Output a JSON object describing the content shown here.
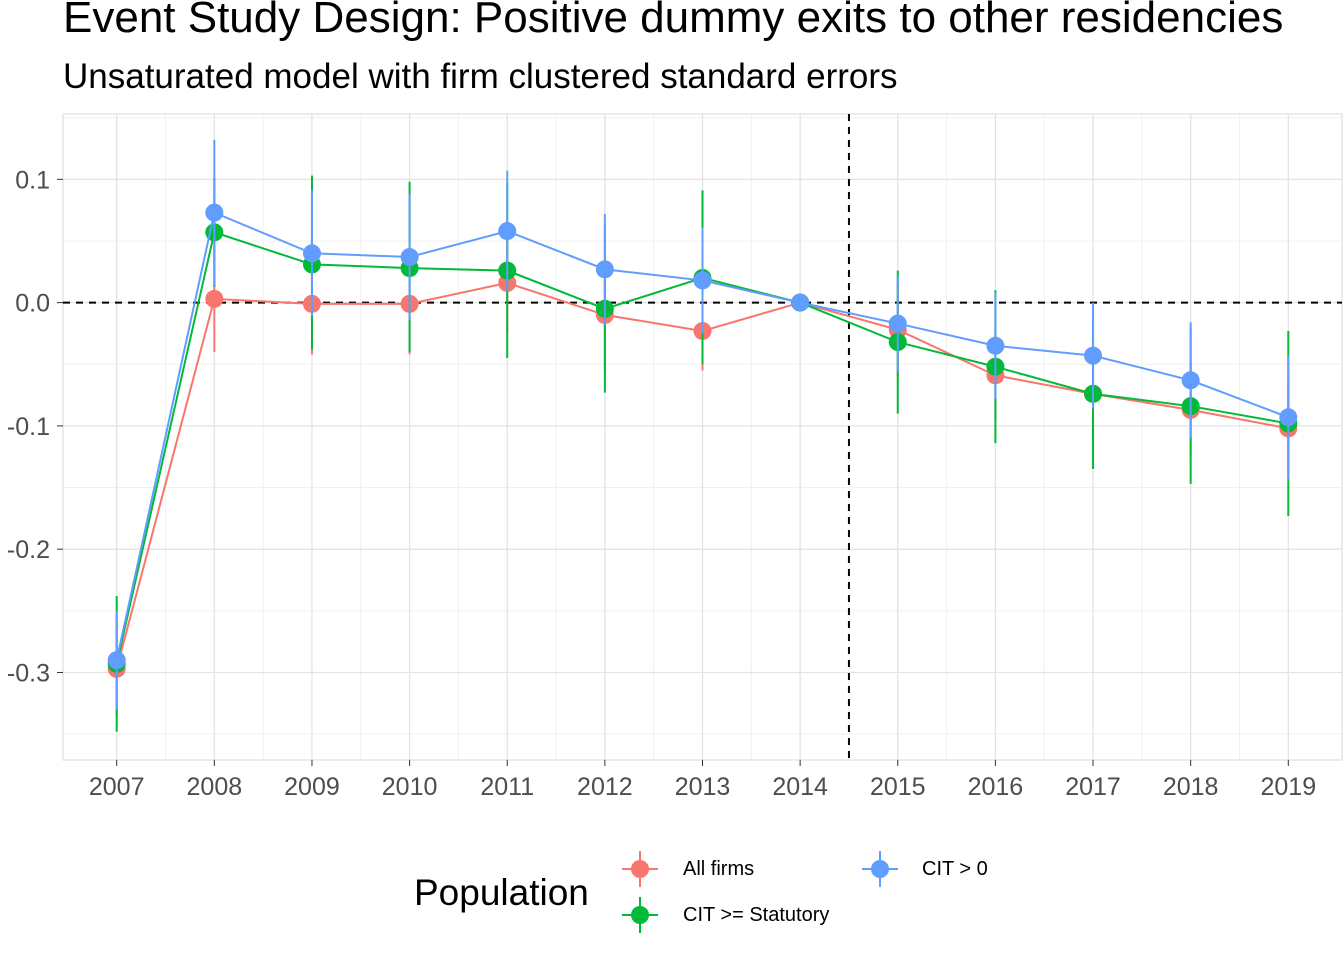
{
  "title": "Event Study Design: Positive dummy exits to other residencies",
  "subtitle": "Unsaturated model with firm clustered standard errors",
  "legend": {
    "title": "Population",
    "entries": [
      "All firms",
      "CIT >= Statutory",
      "CIT > 0"
    ]
  },
  "colors": {
    "All firms": "#F8766D",
    "CIT >= Statutory": "#00BA38",
    "CIT > 0": "#619CFF"
  },
  "chart_data": {
    "type": "line",
    "x": [
      2007,
      2008,
      2009,
      2010,
      2011,
      2012,
      2013,
      2014,
      2015,
      2016,
      2017,
      2018,
      2019
    ],
    "xtick_labels": [
      "2007",
      "2008",
      "2009",
      "2010",
      "2011",
      "2012",
      "2013",
      "2014",
      "2015",
      "2016",
      "2017",
      "2018",
      "2019"
    ],
    "ytick_values": [
      0.1,
      0.0,
      -0.1,
      -0.2,
      -0.3
    ],
    "ytick_labels": [
      "0.1",
      "0.0",
      "-0.1",
      "-0.2",
      "-0.3"
    ],
    "ylim": [
      -0.371,
      0.153
    ],
    "xlim": [
      2006.45,
      2019.55
    ],
    "reference_lines": {
      "y": 0,
      "x": 2014.5,
      "style": "dashed"
    },
    "grid": true,
    "legend_position": "bottom",
    "series": [
      {
        "name": "All firms",
        "color": "#F8766D",
        "values": [
          -0.297,
          0.003,
          -0.001,
          -0.001,
          0.016,
          -0.01,
          -0.023,
          0.0,
          -0.022,
          -0.059,
          -0.074,
          -0.087,
          -0.102
        ],
        "lower": [
          -0.335,
          -0.04,
          -0.042,
          -0.042,
          -0.025,
          -0.055,
          -0.055,
          0.0,
          -0.06,
          -0.095,
          -0.112,
          -0.125,
          -0.14
        ],
        "upper": [
          -0.259,
          0.046,
          0.04,
          0.04,
          0.057,
          0.035,
          0.009,
          0.0,
          0.016,
          -0.023,
          -0.036,
          -0.049,
          -0.064
        ]
      },
      {
        "name": "CIT >= Statutory",
        "color": "#00BA38",
        "values": [
          -0.293,
          0.057,
          0.031,
          0.028,
          0.026,
          -0.005,
          0.02,
          0.0,
          -0.032,
          -0.052,
          -0.074,
          -0.084,
          -0.098
        ],
        "lower": [
          -0.348,
          0.013,
          -0.038,
          -0.04,
          -0.045,
          -0.073,
          -0.05,
          0.0,
          -0.09,
          -0.114,
          -0.135,
          -0.147,
          -0.173
        ],
        "upper": [
          -0.238,
          0.101,
          0.103,
          0.098,
          0.097,
          0.063,
          0.091,
          0.0,
          0.026,
          0.01,
          -0.013,
          -0.021,
          -0.023
        ]
      },
      {
        "name": "CIT > 0",
        "color": "#619CFF",
        "values": [
          -0.29,
          0.073,
          0.04,
          0.037,
          0.058,
          0.027,
          0.018,
          0.0,
          -0.017,
          -0.035,
          -0.043,
          -0.063,
          -0.093
        ],
        "lower": [
          -0.33,
          0.014,
          -0.011,
          -0.014,
          0.009,
          -0.018,
          -0.025,
          0.0,
          -0.056,
          -0.078,
          -0.086,
          -0.11,
          -0.143
        ],
        "upper": [
          -0.25,
          0.132,
          0.091,
          0.088,
          0.107,
          0.072,
          0.061,
          0.0,
          0.022,
          0.008,
          0.0,
          -0.016,
          -0.043
        ]
      }
    ]
  }
}
